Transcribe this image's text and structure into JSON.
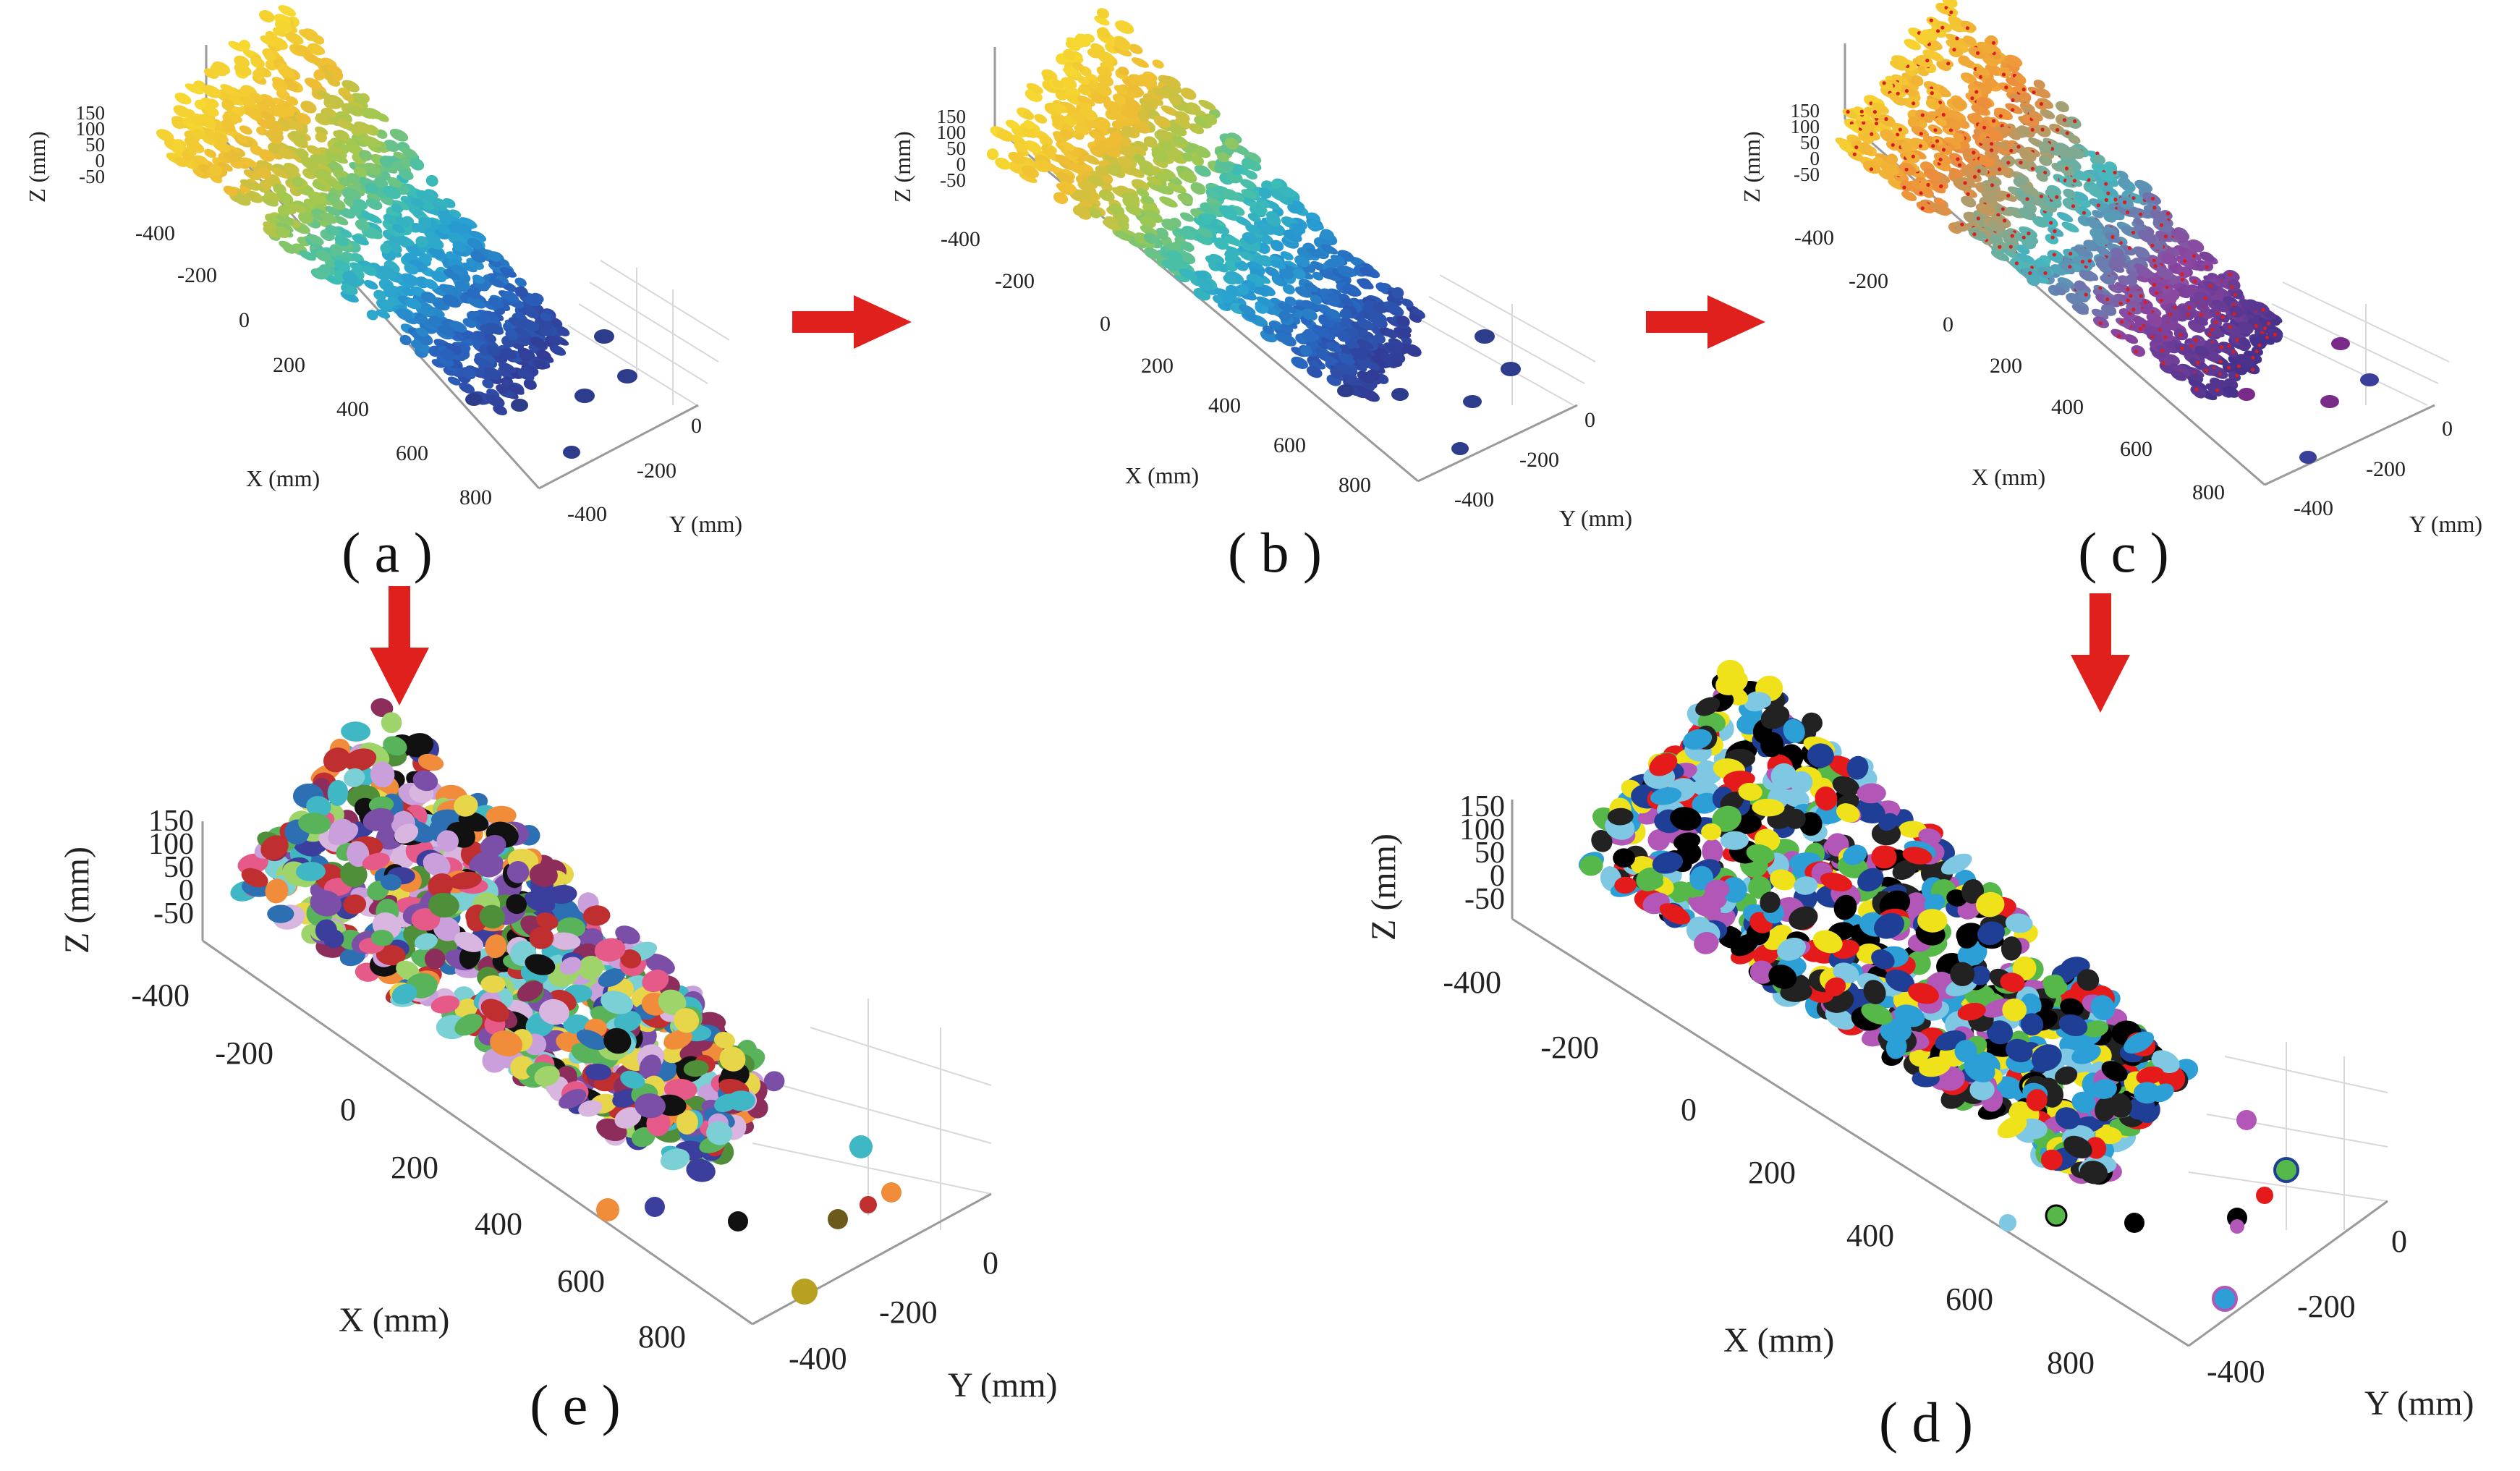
{
  "figure": {
    "arrow_color": "#e0201c",
    "panels": [
      {
        "id": "a",
        "label": "( a )",
        "colormap": "parula",
        "axes": {
          "x_title": "X (mm)",
          "y_title": "Y (mm)",
          "z_title": "Z (mm)",
          "x_ticks": [
            "-400",
            "-200",
            "0",
            "200",
            "400",
            "600",
            "800"
          ],
          "y_ticks": [
            "0",
            "-200",
            "-400"
          ],
          "z_ticks": [
            "150",
            "100",
            "50",
            "0",
            "-50"
          ]
        }
      },
      {
        "id": "b",
        "label": "( b )",
        "colormap": "parula",
        "axes": {
          "x_title": "X (mm)",
          "y_title": "Y (mm)",
          "z_title": "Z (mm)",
          "x_ticks": [
            "-400",
            "-200",
            "0",
            "200",
            "400",
            "600",
            "800"
          ],
          "y_ticks": [
            "0",
            "-200",
            "-400"
          ],
          "z_ticks": [
            "150",
            "100",
            "50",
            "0",
            "-50"
          ]
        }
      },
      {
        "id": "c",
        "label": "( c )",
        "colormap": "parula-with-red-points",
        "axes": {
          "x_title": "X (mm)",
          "y_title": "Y (mm)",
          "z_title": "Z (mm)",
          "x_ticks": [
            "-400",
            "-200",
            "0",
            "200",
            "400",
            "600",
            "800"
          ],
          "y_ticks": [
            "0",
            "-200",
            "-400"
          ],
          "z_ticks": [
            "150",
            "100",
            "50",
            "0",
            "-50"
          ]
        }
      },
      {
        "id": "d",
        "label": "( d )",
        "colormap": "categorical-basic",
        "axes": {
          "x_title": "X (mm)",
          "y_title": "Y (mm)",
          "z_title": "Z (mm)",
          "x_ticks": [
            "-400",
            "-200",
            "0",
            "200",
            "400",
            "600",
            "800"
          ],
          "y_ticks": [
            "0",
            "-200",
            "-400"
          ],
          "z_ticks": [
            "150",
            "100",
            "50",
            "0",
            "-50"
          ]
        }
      },
      {
        "id": "e",
        "label": "( e )",
        "colormap": "categorical-rich",
        "axes": {
          "x_title": "X (mm)",
          "y_title": "Y (mm)",
          "z_title": "Z (mm)",
          "x_ticks": [
            "-400",
            "-200",
            "0",
            "200",
            "400",
            "600",
            "800"
          ],
          "y_ticks": [
            "0",
            "-200",
            "-400"
          ],
          "z_ticks": [
            "150",
            "100",
            "50",
            "0",
            "-50"
          ]
        }
      }
    ],
    "arrows": [
      {
        "from": "a",
        "to": "b",
        "direction": "right"
      },
      {
        "from": "b",
        "to": "c",
        "direction": "right"
      },
      {
        "from": "c",
        "to": "d",
        "direction": "down"
      },
      {
        "from": "a",
        "to": "e",
        "direction": "down"
      }
    ],
    "palettes": {
      "categorical-basic": [
        "#000000",
        "#e51a1a",
        "#f0e21a",
        "#2b9fd6",
        "#1f3f96",
        "#55b848",
        "#b257b8",
        "#7ec8e3",
        "#222222"
      ],
      "categorical-rich": [
        "#3b3e9c",
        "#7b4fa8",
        "#58b35a",
        "#e7d54a",
        "#e65a8a",
        "#3fb7c4",
        "#2c6fb3",
        "#9fd46a",
        "#f08c3a",
        "#8c2d5c",
        "#111111",
        "#c9a0dc",
        "#4f8f3a",
        "#c02f2f",
        "#7ad0d4",
        "#d9b6e0"
      ]
    }
  }
}
